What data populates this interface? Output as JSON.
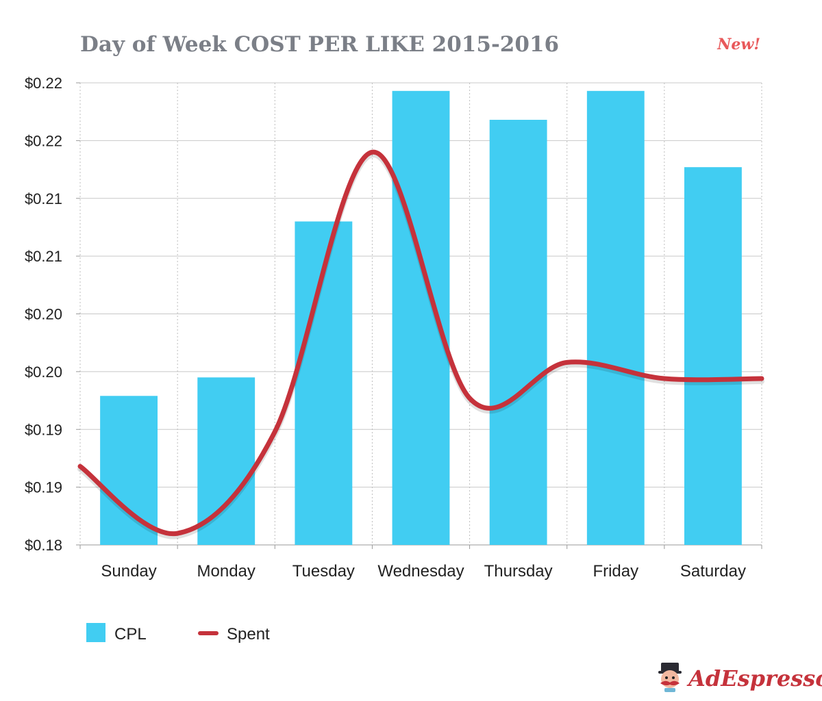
{
  "header": {
    "title": "Day of Week COST PER LIKE 2015-2016",
    "badge": "New!"
  },
  "chart_data": {
    "type": "bar",
    "title": "Day of Week COST PER LIKE 2015-2016",
    "categories": [
      "Sunday",
      "Monday",
      "Tuesday",
      "Wednesday",
      "Thursday",
      "Friday",
      "Saturday"
    ],
    "y_ticks": [
      "$0.22",
      "$0.22",
      "$0.21",
      "$0.21",
      "$0.20",
      "$0.20",
      "$0.19",
      "$0.19",
      "$0.18"
    ],
    "ylim": [
      0.18,
      0.22
    ],
    "grid": true,
    "legend_position": "bottom-left",
    "series": [
      {
        "name": "CPL",
        "type": "bar",
        "color": "#41cdf2",
        "values": [
          0.1929,
          0.1945,
          0.208,
          0.2193,
          0.2168,
          0.2193,
          0.2127
        ]
      },
      {
        "name": "Spent",
        "type": "line",
        "smooth": true,
        "color": "#c5323b",
        "values": [
          0.1868,
          0.181,
          0.1898,
          0.214,
          0.1927,
          0.1958,
          0.1944
        ]
      }
    ]
  },
  "legend": {
    "items": [
      {
        "label": "CPL",
        "color": "#41cdf2",
        "kind": "square"
      },
      {
        "label": "Spent",
        "color": "#c5323b",
        "kind": "line"
      }
    ]
  },
  "brand": {
    "text": "AdEspresso",
    "icon": "mascot-icon"
  }
}
